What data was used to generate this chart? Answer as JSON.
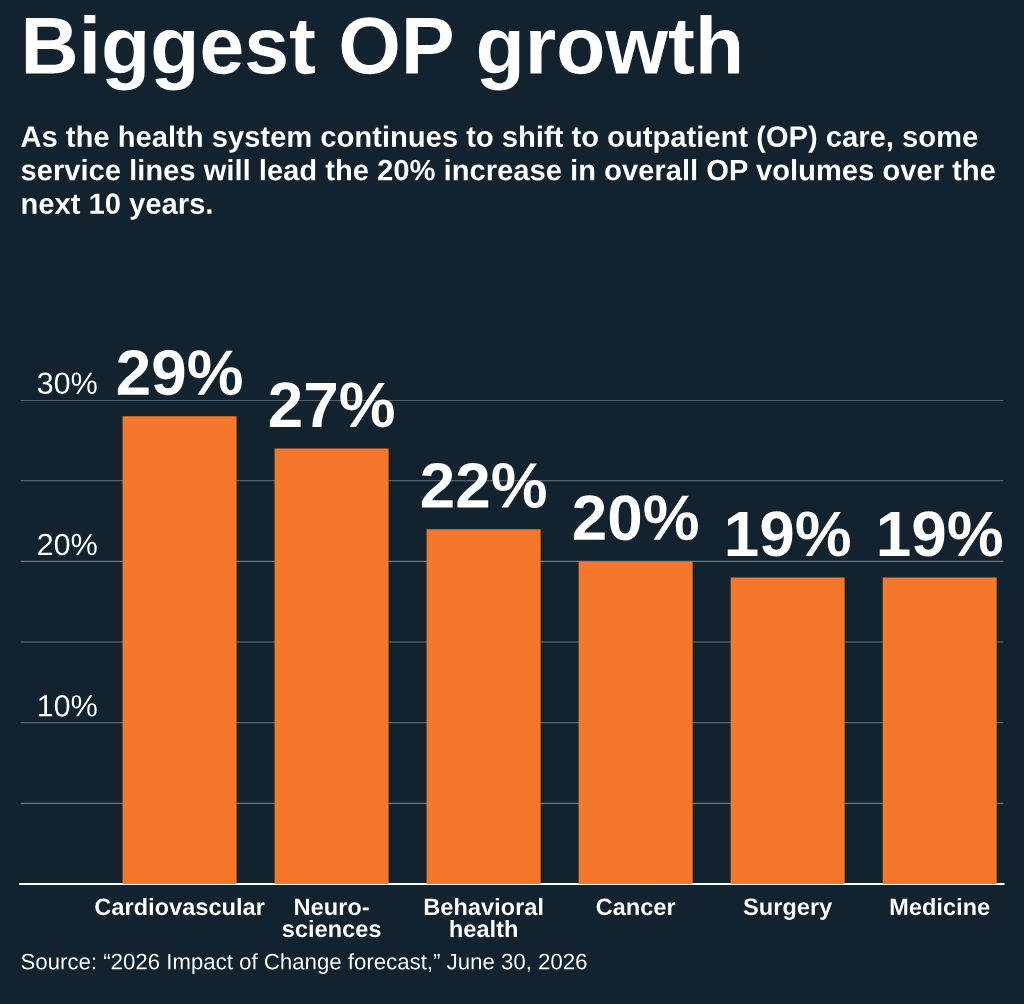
{
  "chart_data": {
    "type": "bar",
    "title": "Biggest OP growth",
    "subtitle": "As the health system continues to shift to outpatient (OP) care, some service lines will lead the 20% increase in overall OP volumes over the next 10 years.",
    "categories": [
      "Cardiovascular",
      "Neuro-\nsciences",
      "Behavioral\nhealth",
      "Cancer",
      "Surgery",
      "Medicine"
    ],
    "values": [
      29,
      27,
      22,
      20,
      19,
      19
    ],
    "value_labels": [
      "29%",
      "27%",
      "22%",
      "20%",
      "19%",
      "19%"
    ],
    "color": "#f4772b",
    "ylim": [
      0,
      30
    ],
    "yticks": [
      {
        "value": 0,
        "label": null
      },
      {
        "value": 5,
        "label": null
      },
      {
        "value": 10,
        "label": "10%"
      },
      {
        "value": 15,
        "label": null
      },
      {
        "value": 20,
        "label": "20%"
      },
      {
        "value": 25,
        "label": null
      },
      {
        "value": 30,
        "label": "30%"
      }
    ],
    "grid": "y",
    "annotations": [
      "Source: “2026 Impact of Change forecast,” June 30, 2026"
    ]
  }
}
